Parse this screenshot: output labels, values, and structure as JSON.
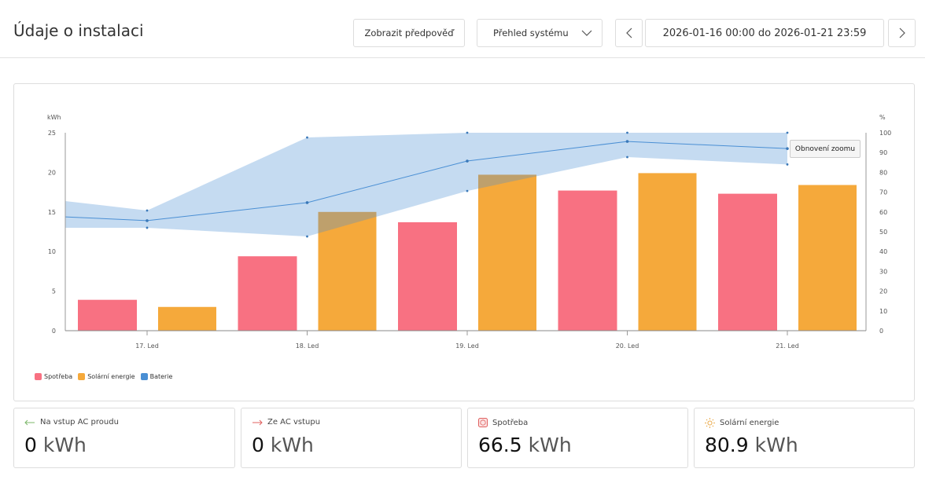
{
  "header": {
    "title": "Údaje o instalaci",
    "forecast_button": "Zobrazit předpověď",
    "view_select": "Přehled systému",
    "date_range": "2026-01-16 00:00 do 2026-01-21 23:59"
  },
  "chart": {
    "reset_zoom": "Obnovení zoomu",
    "legend": [
      {
        "label": "Spotřeba",
        "color": "#f87182"
      },
      {
        "label": "Solární energie",
        "color": "#f5a93b"
      },
      {
        "label": "Baterie",
        "color": "#4a8fd4"
      }
    ]
  },
  "chart_data": {
    "type": "bar",
    "categories": [
      "17. Led",
      "18. Led",
      "19. Led",
      "20. Led",
      "21. Led"
    ],
    "ylabel": "kWh",
    "y2label": "%",
    "ylim": [
      0,
      25
    ],
    "y2lim": [
      0,
      100
    ],
    "yticks": [
      "0",
      "5",
      "10",
      "15",
      "20",
      "25"
    ],
    "y2ticks": [
      "0",
      "10",
      "20",
      "30",
      "40",
      "50",
      "60",
      "70",
      "80",
      "90",
      "100"
    ],
    "grid": false,
    "legend_position": "bottom-left",
    "series": [
      {
        "name": "Spotřeba",
        "type": "bar",
        "axis": "left",
        "color": "#f87182",
        "values": [
          3.9,
          9.4,
          13.7,
          17.7,
          17.3
        ]
      },
      {
        "name": "Solární energie",
        "type": "bar",
        "axis": "left",
        "color": "#f5a93b",
        "values": [
          3.0,
          15.0,
          19.7,
          19.9,
          18.4
        ]
      },
      {
        "name": "Baterie",
        "type": "line-range",
        "axis": "right",
        "color": "#4a8fd4",
        "x": [
          "16. Led 12:00",
          "17. Led",
          "18. Led",
          "19. Led",
          "20. Led",
          "21. Led"
        ],
        "values": [
          57.5,
          55.6,
          64.7,
          85.7,
          95.6,
          92.0
        ],
        "min": [
          52,
          52,
          47.6,
          70.6,
          87.7,
          84.0
        ],
        "max": [
          65.5,
          60.7,
          97.6,
          100,
          100,
          100
        ]
      }
    ]
  },
  "stats": [
    {
      "label": "Na vstup AC proudu",
      "value": "0",
      "unit": "kWh",
      "icon": "arrow-left-icon",
      "icon_color": "#7cb76a"
    },
    {
      "label": "Ze AC vstupu",
      "value": "0",
      "unit": "kWh",
      "icon": "arrow-right-icon",
      "icon_color": "#e0605f"
    },
    {
      "label": "Spotřeba",
      "value": "66.5",
      "unit": "kWh",
      "icon": "socket-icon",
      "icon_color": "#e0605f"
    },
    {
      "label": "Solární energie",
      "value": "80.9",
      "unit": "kWh",
      "icon": "sun-icon",
      "icon_color": "#e8a23a"
    }
  ]
}
